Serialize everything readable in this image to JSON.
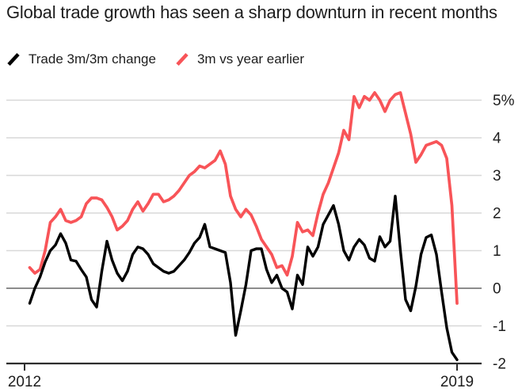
{
  "title": "Global trade growth has seen a sharp downturn in recent months",
  "legend": [
    {
      "label": "Trade 3m/3m change",
      "color": "#000000"
    },
    {
      "label": "3m vs year earlier",
      "color": "#f85458"
    }
  ],
  "colors": {
    "text": "#1d1d1d",
    "grid": "#d8d8d8",
    "zero_line": "#8c8c8c",
    "axis": "#2d2d2d",
    "series_black": "#000000",
    "series_red": "#f85458",
    "background": "#ffffff"
  },
  "chart_data": {
    "type": "line",
    "title": "Global trade growth has seen a sharp downturn in recent months",
    "xlabel": "",
    "ylabel": "",
    "x_unit": "months since Jan 2012",
    "xlim": [
      0,
      84
    ],
    "ylim": [
      -2,
      5.5
    ],
    "grid": "horizontal",
    "zero_line": true,
    "legend_position": "top-left",
    "x_ticks": [
      {
        "pos": 0,
        "label": "2012"
      },
      {
        "pos": 84,
        "label": "2019"
      }
    ],
    "y_ticks": [
      {
        "value": 5,
        "label": "5%"
      },
      {
        "value": 4,
        "label": "4"
      },
      {
        "value": 3,
        "label": "3"
      },
      {
        "value": 2,
        "label": "2"
      },
      {
        "value": 1,
        "label": "1"
      },
      {
        "value": 0,
        "label": "0"
      },
      {
        "value": -1,
        "label": "-1"
      },
      {
        "value": -2,
        "label": "-2"
      }
    ],
    "series": [
      {
        "name": "3m vs year earlier",
        "color": "#f85458",
        "values": [
          null,
          0.55,
          0.4,
          0.5,
          1.0,
          1.75,
          1.9,
          2.1,
          1.8,
          1.75,
          1.8,
          1.9,
          2.25,
          2.4,
          2.4,
          2.35,
          2.15,
          1.9,
          1.55,
          1.65,
          1.8,
          2.1,
          2.3,
          2.05,
          2.25,
          2.5,
          2.5,
          2.3,
          2.35,
          2.45,
          2.6,
          2.8,
          3.0,
          3.1,
          3.25,
          3.2,
          3.3,
          3.4,
          3.65,
          3.3,
          2.45,
          2.1,
          1.9,
          2.1,
          1.95,
          1.65,
          1.3,
          1.1,
          0.9,
          0.55,
          0.6,
          0.35,
          0.85,
          1.75,
          1.5,
          1.55,
          1.4,
          2.0,
          2.5,
          2.8,
          3.2,
          3.6,
          4.2,
          3.95,
          5.1,
          4.8,
          5.1,
          5.0,
          5.2,
          5.0,
          4.7,
          5.0,
          5.15,
          5.2,
          4.65,
          4.1,
          3.35,
          3.55,
          3.8,
          3.85,
          3.9,
          3.8,
          3.45,
          2.2,
          -0.4
        ]
      },
      {
        "name": "Trade 3m/3m change",
        "color": "#000000",
        "values": [
          null,
          -0.4,
          0.0,
          0.3,
          0.7,
          1.0,
          1.15,
          1.45,
          1.2,
          0.75,
          0.72,
          0.5,
          0.3,
          -0.3,
          -0.5,
          0.45,
          1.25,
          0.75,
          0.4,
          0.2,
          0.45,
          0.9,
          1.1,
          1.05,
          0.9,
          0.65,
          0.55,
          0.45,
          0.4,
          0.45,
          0.6,
          0.75,
          0.95,
          1.2,
          1.35,
          1.7,
          1.1,
          1.05,
          1.0,
          0.95,
          0.15,
          -1.25,
          -0.6,
          0.1,
          1.0,
          1.05,
          1.05,
          0.5,
          0.15,
          0.35,
          0.0,
          -0.1,
          -0.55,
          0.35,
          0.1,
          1.1,
          0.85,
          1.1,
          1.7,
          1.95,
          2.2,
          1.7,
          1.0,
          0.75,
          1.1,
          1.3,
          1.15,
          0.8,
          0.72,
          1.37,
          1.1,
          1.25,
          2.45,
          1.0,
          -0.3,
          -0.6,
          0.05,
          0.9,
          1.35,
          1.42,
          0.9,
          -0.1,
          -1.05,
          -1.7,
          -1.9
        ]
      }
    ]
  }
}
